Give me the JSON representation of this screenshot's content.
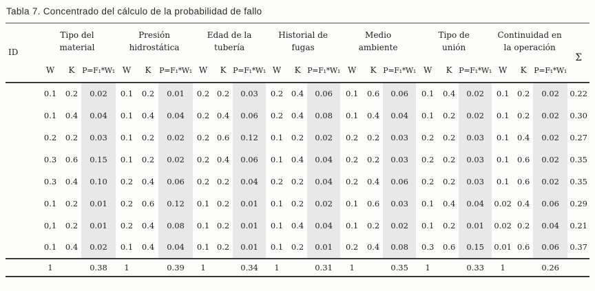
{
  "title": "Tabla 7. Concentrado del cálculo de la probabilidad de fallo",
  "table": {
    "id_header": "ID",
    "sum_header": "Σ",
    "groups": [
      "Tipo del\nmaterial",
      "Presión\nhidrostática",
      "Edad de la\ntubería",
      "Historial de\nfugas",
      "Medio\nambiente",
      "Tipo de\nunión",
      "Continuidad en\nla operación"
    ],
    "sub_headers": [
      "W",
      "K",
      "P=F₁*W₁"
    ],
    "rows": [
      [
        "0.1",
        "0.2",
        "0.02",
        "0.1",
        "0.2",
        "0.01",
        "0.2",
        "0.2",
        "0.03",
        "0.2",
        "0.4",
        "0.06",
        "0.1",
        "0.6",
        "0.06",
        "0.1",
        "0.4",
        "0.02",
        "0.1",
        "0.2",
        "0.02",
        "0.22"
      ],
      [
        "0.1",
        "0.4",
        "0.04",
        "0.1",
        "0.4",
        "0.04",
        "0.2",
        "0.4",
        "0.06",
        "0.2",
        "0.4",
        "0.08",
        "0.1",
        "0.4",
        "0.04",
        "0.1",
        "0.2",
        "0.02",
        "0.1",
        "0.2",
        "0.02",
        "0.30"
      ],
      [
        "0.2",
        "0.2",
        "0.03",
        "0.1",
        "0.2",
        "0.02",
        "0.2",
        "0.6",
        "0.12",
        "0.1",
        "0.2",
        "0.02",
        "0.2",
        "0.2",
        "0.03",
        "0.2",
        "0.2",
        "0.03",
        "0.1",
        "0.4",
        "0.02",
        "0.27"
      ],
      [
        "0.3",
        "0.6",
        "0.15",
        "0.1",
        "0.2",
        "0.02",
        "0.2",
        "0.4",
        "0.06",
        "0.1",
        "0.4",
        "0.04",
        "0.2",
        "0.2",
        "0.03",
        "0.2",
        "0.2",
        "0.03",
        "0.1",
        "0.6",
        "0.02",
        "0.35"
      ],
      [
        "0.3",
        "0.4",
        "0.10",
        "0.2",
        "0.4",
        "0.06",
        "0.2",
        "0.2",
        "0.04",
        "0.2",
        "0.2",
        "0.04",
        "0.2",
        "0.4",
        "0.06",
        "0.2",
        "0.2",
        "0.03",
        "0.1",
        "0.6",
        "0.02",
        "0.35"
      ],
      [
        "0.1",
        "0.2",
        "0.01",
        "0.2",
        "0.6",
        "0.12",
        "0.1",
        "0.2",
        "0.01",
        "0.1",
        "0.2",
        "0.02",
        "0.1",
        "0.6",
        "0.03",
        "0.1",
        "0.4",
        "0.04",
        "0.02",
        "0.4",
        "0.06",
        "0.29"
      ],
      [
        "0,1",
        "0.2",
        "0.01",
        "0.2",
        "0.4",
        "0.08",
        "0.1",
        "0.2",
        "0.01",
        "0.1",
        "0.4",
        "0.04",
        "0.1",
        "0.2",
        "0.02",
        "0.1",
        "0.2",
        "0.01",
        "0.02",
        "0.2",
        "0.04",
        "0.21"
      ],
      [
        "0.1",
        "0.4",
        "0.02",
        "0.1",
        "0.4",
        "0.04",
        "0.1",
        "0.2",
        "0.01",
        "0.1",
        "0.2",
        "0.01",
        "0.2",
        "0.4",
        "0.08",
        "0.3",
        "0.6",
        "0.15",
        "0.01",
        "0.6",
        "0.06",
        "0.37"
      ]
    ],
    "totals": [
      "1",
      "",
      "0.38",
      "1",
      "",
      "0.39",
      "1",
      "",
      "0.34",
      "1",
      "",
      "0.31",
      "1",
      "",
      "0.35",
      "1",
      "",
      "0.33",
      "1",
      "",
      "0.26",
      ""
    ]
  }
}
